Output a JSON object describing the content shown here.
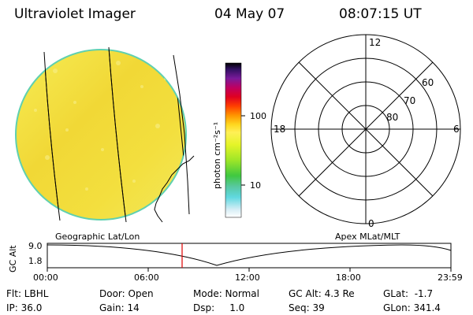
{
  "header": {
    "instrument": "Ultraviolet Imager",
    "date": "04 May 07",
    "time": "08:07:15 UT"
  },
  "colorbar": {
    "unit_label": "photon cm⁻²s⁻¹",
    "ticks": [
      "100",
      "10"
    ]
  },
  "polar_plot": {
    "mlt_labels": {
      "top": "12",
      "left": "18",
      "right": "6",
      "bottom": "0"
    },
    "lat_labels": [
      "60",
      "70",
      "80"
    ]
  },
  "panel_labels": {
    "geographic": "Geographic Lat/Lon",
    "apex": "Apex MLat/MLT"
  },
  "altitude_plot": {
    "ylabel": "GC Alt",
    "yticks": [
      "9.0",
      "1.8"
    ],
    "xticks": [
      "00:00",
      "06:00",
      "12:00",
      "18:00",
      "23:59"
    ]
  },
  "info": {
    "flt": "Flt: LBHL",
    "door": "Door: Open",
    "mode": "Mode: Normal",
    "gc_alt": "GC Alt: 4.3 Re",
    "glat": "GLat:  -1.7",
    "ip": "IP: 36.0",
    "gain": "Gain: 14",
    "dsp": "Dsp:     1.0",
    "seq": "Seq: 39",
    "glon": "GLon: 341.4"
  },
  "colors": {
    "image_fill": "#f2e23c",
    "image_edge": "#5fd0b0",
    "current_time_marker": "#e00000"
  }
}
